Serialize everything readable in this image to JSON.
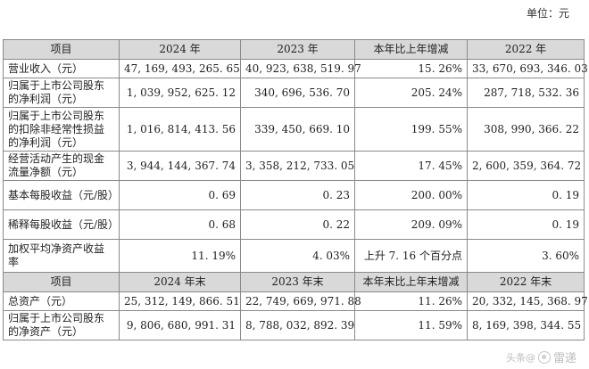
{
  "unit_label": "单位：元",
  "sections": [
    {
      "headers": [
        "项目",
        "2024 年",
        "2023 年",
        "本年比上年增减",
        "2022 年"
      ],
      "rows": [
        {
          "label": "营业收入（元）",
          "v2024": "47, 169, 493, 265. 65",
          "v2023": "40, 923, 638, 519. 97",
          "change": "15. 26%",
          "v2022": "33, 670, 693, 346. 03"
        },
        {
          "label": "归属于上市公司股东的净利润（元）",
          "v2024": "1, 039, 952, 625. 12",
          "v2023": "340, 696, 536. 70",
          "change": "205. 24%",
          "v2022": "287, 718, 532. 36"
        },
        {
          "label": "归属于上市公司股东的扣除非经常性损益的净利润（元）",
          "v2024": "1, 016, 814, 413. 56",
          "v2023": "339, 450, 669. 10",
          "change": "199. 55%",
          "v2022": "308, 990, 366. 22"
        },
        {
          "label": "经营活动产生的现金流量净额（元）",
          "v2024": "3, 944, 144, 367. 74",
          "v2023": "3, 358, 212, 733. 05",
          "change": "17. 45%",
          "v2022": "2, 600, 359, 364. 72"
        },
        {
          "label": "基本每股收益（元/股）",
          "v2024": "0. 69",
          "v2023": "0. 23",
          "change": "200. 00%",
          "v2022": "0. 19"
        },
        {
          "label": "稀释每股收益（元/股）",
          "v2024": "0. 68",
          "v2023": "0. 22",
          "change": "209. 09%",
          "v2022": "0. 19"
        },
        {
          "label": "加权平均净资产收益率",
          "v2024": "11. 19%",
          "v2023": "4. 03%",
          "change": "上升 7. 16 个百分点",
          "v2022": "3. 60%"
        }
      ]
    },
    {
      "headers": [
        "项目",
        "2024 年末",
        "2023 年末",
        "本年末比上年末增减",
        "2022 年末"
      ],
      "rows": [
        {
          "label": "总资产（元）",
          "v2024": "25, 312, 149, 866. 51",
          "v2023": "22, 749, 669, 971. 88",
          "change": "11. 26%",
          "v2022": "20, 332, 145, 368. 97"
        },
        {
          "label": "归属于上市公司股东的净资产（元）",
          "v2024": "9, 806, 680, 991. 31",
          "v2023": "8, 788, 032, 892. 39",
          "change": "11. 59%",
          "v2022": "8, 169, 398, 344. 55"
        }
      ]
    }
  ],
  "watermark": {
    "text": "雷递",
    "prefix": "头条@",
    "icon": "watermark-logo-icon"
  }
}
